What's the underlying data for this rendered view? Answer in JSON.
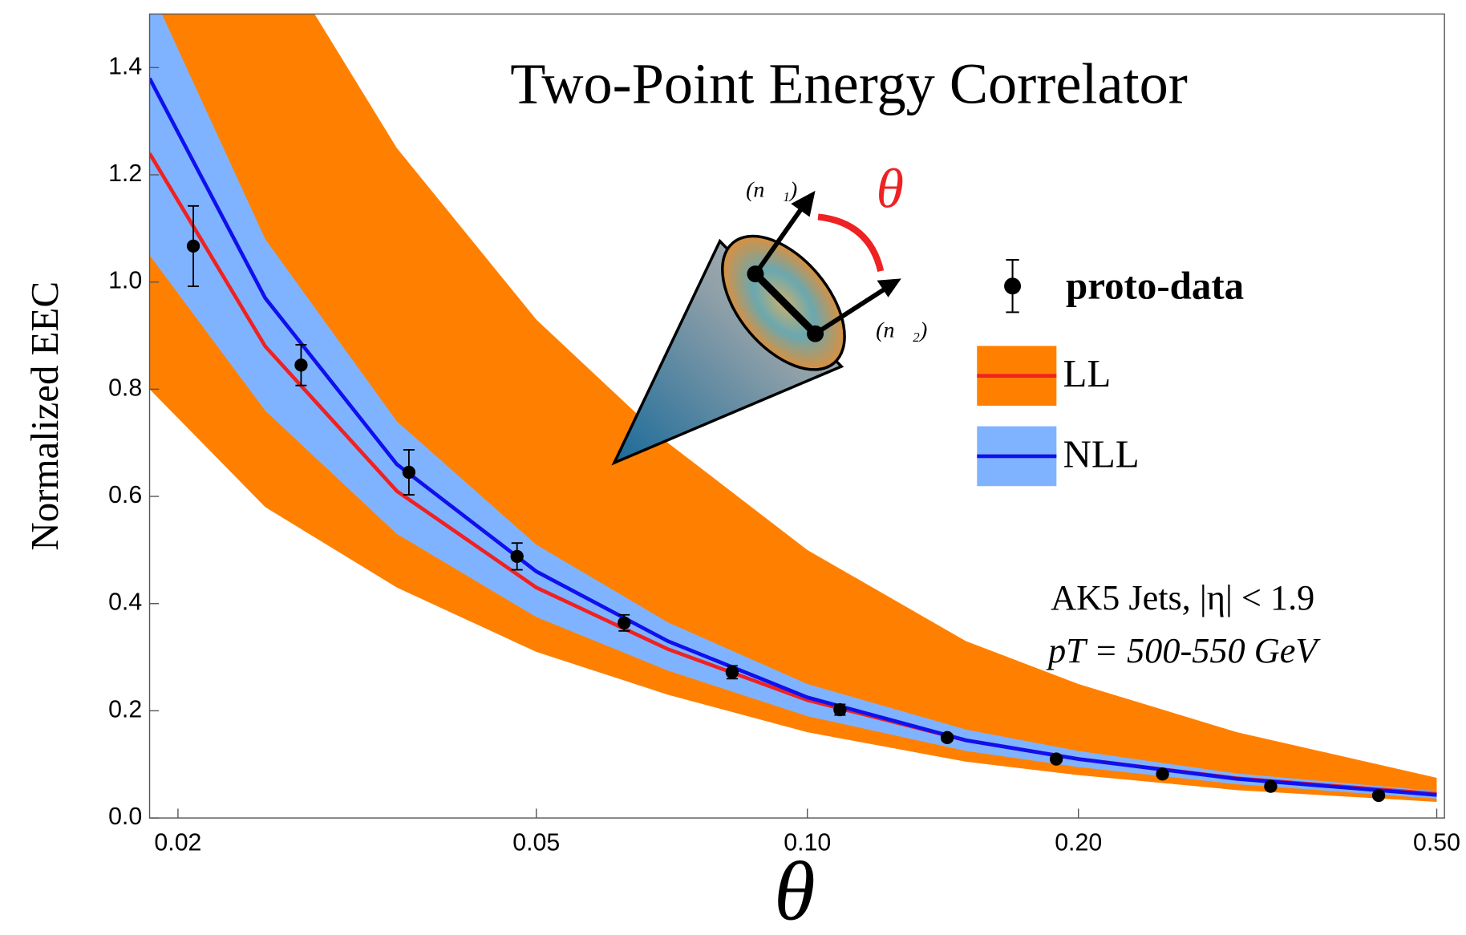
{
  "chart_data": {
    "type": "line",
    "title": "Two-Point Energy Correlator",
    "x_label": "θ",
    "y_label": "Normalized EEC",
    "annotations": [
      "AK5 Jets, |η| < 1.9",
      "pT = 500-550 GeV"
    ],
    "diagram_labels": [
      "ℰ(n⃗₁)",
      "ℰ(n⃗₂)",
      "θ"
    ],
    "xscale": "log",
    "xlim": [
      0.0186,
      0.51
    ],
    "ylim": [
      0,
      1.5
    ],
    "xticks": [
      0.02,
      0.05,
      {
        "value": 0.1,
        "label": "0.10"
      },
      {
        "value": 0.2,
        "label": "0.20"
      },
      {
        "value": 0.5,
        "label": "0.50"
      }
    ],
    "yticks": [
      {
        "value": 0,
        "label": "0.0"
      },
      0.2,
      0.4,
      0.6,
      0.8,
      {
        "value": 1,
        "label": "1.0"
      },
      1.2,
      1.4
    ],
    "series": [
      {
        "name": "proto-data",
        "color": "#000000",
        "x": [
          0.0208,
          0.0274,
          0.0361,
          0.0476,
          0.0626,
          0.0825,
          0.1087,
          0.143,
          0.189,
          0.248,
          0.327,
          0.431
        ],
        "values": [
          1.067,
          0.845,
          0.645,
          0.488,
          0.364,
          0.272,
          0.202,
          0.15,
          0.11,
          0.082,
          0.059,
          0.042
        ],
        "errors": [
          0.075,
          0.038,
          0.042,
          0.025,
          0.015,
          0.012,
          0.01,
          0.006,
          0.005,
          0.004,
          0.004,
          0.003
        ]
      },
      {
        "name": "LL",
        "color": "#ff8000",
        "line_color": "#ee2222",
        "x": [
          0.0186,
          0.025,
          0.035,
          0.05,
          0.07,
          0.1,
          0.15,
          0.2,
          0.3,
          0.5
        ],
        "values": [
          1.24,
          0.88,
          0.61,
          0.43,
          0.315,
          0.22,
          0.145,
          0.11,
          0.074,
          0.045
        ],
        "upper": [
          2.3,
          1.65,
          1.25,
          0.93,
          0.7,
          0.5,
          0.33,
          0.25,
          0.16,
          0.075
        ],
        "lower": [
          0.8,
          0.58,
          0.43,
          0.31,
          0.23,
          0.16,
          0.105,
          0.08,
          0.052,
          0.03
        ]
      },
      {
        "name": "NLL",
        "color": "#80b3ff",
        "line_color": "#1010ee",
        "x": [
          0.0186,
          0.025,
          0.035,
          0.05,
          0.07,
          0.1,
          0.15,
          0.2,
          0.3,
          0.5
        ],
        "values": [
          1.38,
          0.97,
          0.66,
          0.46,
          0.33,
          0.225,
          0.145,
          0.11,
          0.073,
          0.043
        ],
        "upper": [
          1.55,
          1.08,
          0.74,
          0.51,
          0.365,
          0.25,
          0.165,
          0.125,
          0.083,
          0.05
        ],
        "lower": [
          1.05,
          0.76,
          0.53,
          0.375,
          0.275,
          0.19,
          0.125,
          0.095,
          0.063,
          0.036
        ]
      }
    ]
  }
}
